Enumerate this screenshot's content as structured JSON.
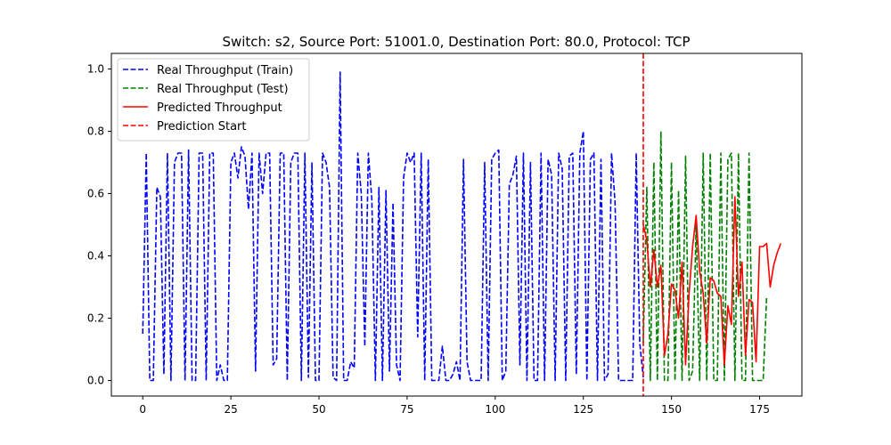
{
  "chart_data": {
    "type": "line",
    "title": "Switch: s2, Source Port: 51001.0, Destination Port: 80.0, Protocol: TCP",
    "xlabel": "",
    "ylabel": "",
    "xlim": [
      -8.9,
      187.0
    ],
    "ylim": [
      -0.05,
      1.05
    ],
    "xticks": [
      0,
      25,
      50,
      75,
      100,
      125,
      150,
      175
    ],
    "yticks": [
      0.0,
      0.2,
      0.4,
      0.6,
      0.8,
      1.0
    ],
    "grid": false,
    "legend_position": "upper-left",
    "series": [
      {
        "name": "Real Throughput (Train)",
        "color": "#0000ff",
        "style": "dashed",
        "x_start": 0,
        "values": [
          0.15,
          0.73,
          0.0,
          0.0,
          0.62,
          0.59,
          0.02,
          0.73,
          0.0,
          0.7,
          0.73,
          0.73,
          0.0,
          0.74,
          0.0,
          0.0,
          0.73,
          0.73,
          0.0,
          0.73,
          0.73,
          0.0,
          0.05,
          0.0,
          0.0,
          0.7,
          0.73,
          0.65,
          0.75,
          0.72,
          0.55,
          0.73,
          0.03,
          0.73,
          0.6,
          0.73,
          0.73,
          0.05,
          0.07,
          0.73,
          0.73,
          0.0,
          0.7,
          0.73,
          0.73,
          0.0,
          0.73,
          0.01,
          0.7,
          0.0,
          0.0,
          0.73,
          0.7,
          0.62,
          0.01,
          0.0,
          0.99,
          0.0,
          0.0,
          0.06,
          0.04,
          0.73,
          0.6,
          0.11,
          0.73,
          0.58,
          0.0,
          0.62,
          0.0,
          0.61,
          0.03,
          0.57,
          0.05,
          0.0,
          0.65,
          0.73,
          0.7,
          0.73,
          0.14,
          0.73,
          0.0,
          0.71,
          0.0,
          0.0,
          0.0,
          0.11,
          0.0,
          0.0,
          0.02,
          0.06,
          0.0,
          0.71,
          0.06,
          0.0,
          0.0,
          0.0,
          0.0,
          0.7,
          0.0,
          0.71,
          0.73,
          0.74,
          0.0,
          0.03,
          0.63,
          0.66,
          0.72,
          0.05,
          0.73,
          0.0,
          0.7,
          0.0,
          0.0,
          0.73,
          0.0,
          0.71,
          0.66,
          0.0,
          0.73,
          0.68,
          0.0,
          0.72,
          0.73,
          0.02,
          0.73,
          0.8,
          0.0,
          0.71,
          0.73,
          0.0,
          0.71,
          0.0,
          0.02,
          0.73,
          0.57,
          0.0,
          0.0,
          0.0,
          0.0,
          0.0,
          0.73,
          0.12,
          0.01
        ]
      },
      {
        "name": "Real Throughput (Test)",
        "color": "#008000",
        "style": "dashed",
        "x_start": 142,
        "values": [
          0.12,
          0.62,
          0.0,
          0.7,
          0.0,
          0.8,
          0.0,
          0.0,
          0.7,
          0.0,
          0.61,
          0.0,
          0.72,
          0.0,
          0.03,
          0.5,
          0.0,
          0.73,
          0.0,
          0.73,
          0.0,
          0.0,
          0.73,
          0.0,
          0.71,
          0.73,
          0.0,
          0.73,
          0.0,
          0.0,
          0.73,
          0.0,
          0.0,
          0.0,
          0.0,
          0.27
        ]
      },
      {
        "name": "Predicted Throughput",
        "color": "#ff0000",
        "style": "solid",
        "x_start": 142,
        "values": [
          0.5,
          0.45,
          0.3,
          0.42,
          0.3,
          0.37,
          0.08,
          0.15,
          0.31,
          0.29,
          0.2,
          0.38,
          0.05,
          0.28,
          0.43,
          0.53,
          0.35,
          0.28,
          0.12,
          0.33,
          0.32,
          0.28,
          0.27,
          0.05,
          0.24,
          0.18,
          0.59,
          0.27,
          0.38,
          0.08,
          0.26,
          0.25,
          0.06,
          0.43,
          0.43,
          0.44,
          0.3,
          0.37,
          0.41,
          0.44
        ]
      }
    ],
    "vline": {
      "name": "Prediction Start",
      "x": 142,
      "color": "#ff0000",
      "style": "dashed"
    }
  }
}
